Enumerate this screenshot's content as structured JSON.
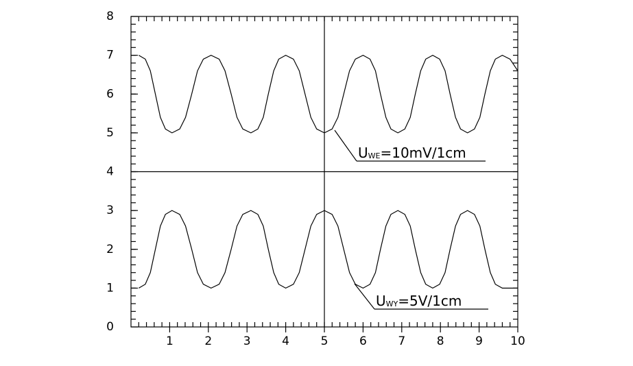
{
  "chart_data": {
    "type": "line",
    "x": [
      0.2,
      0.37,
      0.5,
      0.63,
      0.76,
      0.89,
      1.06,
      1.26,
      1.41,
      1.57,
      1.72,
      1.87,
      2.07,
      2.28,
      2.43,
      2.59,
      2.74,
      2.89,
      3.1,
      3.28,
      3.42,
      3.55,
      3.69,
      3.82,
      4.0,
      4.2,
      4.35,
      4.5,
      4.65,
      4.8,
      5.0,
      5.2,
      5.35,
      5.5,
      5.65,
      5.8,
      6.0,
      6.18,
      6.32,
      6.45,
      6.59,
      6.72,
      6.9,
      7.08,
      7.22,
      7.35,
      7.49,
      7.62,
      7.8,
      7.98,
      8.12,
      8.25,
      8.39,
      8.52,
      8.7,
      8.88,
      9.02,
      9.15,
      9.29,
      9.42,
      9.6,
      9.8,
      10.0
    ],
    "series": [
      {
        "name": "Uwe",
        "color": "#000000",
        "values": [
          7,
          6.9,
          6.6,
          6,
          5.4,
          5.1,
          5,
          5.1,
          5.4,
          6,
          6.6,
          6.9,
          7,
          6.9,
          6.6,
          6,
          5.4,
          5.1,
          5,
          5.1,
          5.4,
          6,
          6.6,
          6.9,
          7,
          6.9,
          6.6,
          6,
          5.4,
          5.1,
          5,
          5.1,
          5.4,
          6,
          6.6,
          6.9,
          7,
          6.9,
          6.6,
          6,
          5.4,
          5.1,
          5,
          5.1,
          5.4,
          6,
          6.6,
          6.9,
          7,
          6.9,
          6.6,
          6,
          5.4,
          5.1,
          5,
          5.1,
          5.4,
          6,
          6.6,
          6.9,
          7,
          6.9,
          6.6
        ]
      },
      {
        "name": "Uwy",
        "color": "#000000",
        "values": [
          1,
          1.1,
          1.4,
          2,
          2.6,
          2.9,
          3,
          2.9,
          2.6,
          2,
          1.4,
          1.1,
          1,
          1.1,
          1.4,
          2,
          2.6,
          2.9,
          3,
          2.9,
          2.6,
          2,
          1.4,
          1.1,
          1,
          1.1,
          1.4,
          2,
          2.6,
          2.9,
          3,
          2.9,
          2.6,
          2,
          1.4,
          1.1,
          1,
          1.1,
          1.4,
          2,
          2.6,
          2.9,
          3,
          2.9,
          2.6,
          2,
          1.4,
          1.1,
          1,
          1.1,
          1.4,
          2,
          2.6,
          2.9,
          3,
          2.9,
          2.6,
          2,
          1.4,
          1.1,
          1,
          1.0,
          1.0
        ]
      }
    ],
    "xlim": [
      0,
      10
    ],
    "xticks": [
      1,
      2,
      3,
      4,
      5,
      6,
      7,
      8,
      9,
      10
    ],
    "ylim": [
      0,
      8
    ],
    "yticks": [
      0,
      1,
      2,
      3,
      4,
      5,
      6,
      7,
      8
    ],
    "crosshair": {
      "x": 5,
      "y": 4
    },
    "annotations": [
      {
        "text": "U",
        "subscript": "WE",
        "suffix": "=10mV/1cm"
      },
      {
        "text": "U",
        "subscript": "WY",
        "suffix": "=5V/1cm"
      }
    ]
  }
}
